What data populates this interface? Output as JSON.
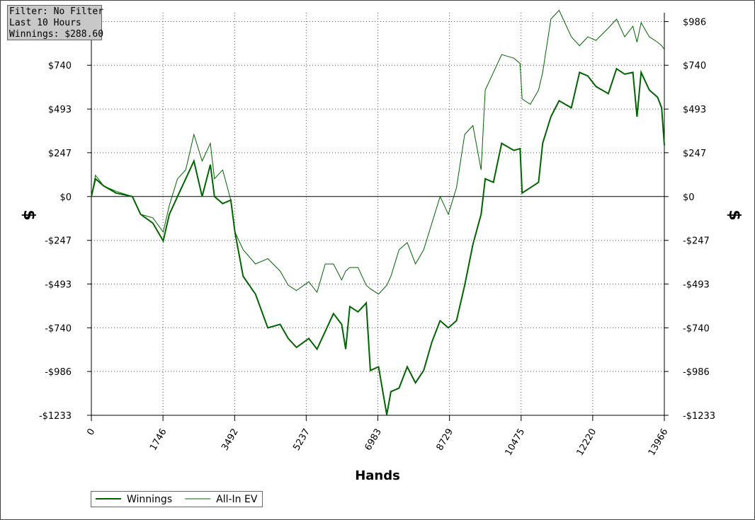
{
  "info": {
    "lines": [
      "Filter: No Filter",
      "Last 10 Hours",
      "Winnings: $288.60"
    ]
  },
  "chart_data": {
    "type": "line",
    "xlabel": "Hands",
    "ylabel": "$",
    "x": [
      0,
      100,
      300,
      600,
      1000,
      1200,
      1500,
      1750,
      1900,
      2100,
      2300,
      2500,
      2700,
      2900,
      3000,
      3200,
      3400,
      3500,
      3700,
      4000,
      4300,
      4600,
      4800,
      5000,
      5300,
      5500,
      5700,
      5900,
      6100,
      6200,
      6300,
      6500,
      6700,
      6800,
      7000,
      7200,
      7300,
      7500,
      7700,
      7900,
      8100,
      8300,
      8500,
      8700,
      8900,
      9100,
      9300,
      9500,
      9600,
      9800,
      10000,
      10300,
      10450,
      10500,
      10700,
      10900,
      11000,
      11200,
      11400,
      11700,
      11900,
      12100,
      12300,
      12600,
      12800,
      13000,
      13200,
      13300,
      13400,
      13600,
      13800,
      13900,
      13966
    ],
    "series": [
      {
        "name": "Winnings",
        "color": "#006400",
        "width": 2,
        "values": [
          0,
          100,
          60,
          20,
          0,
          -100,
          -150,
          -250,
          -100,
          0,
          100,
          200,
          0,
          180,
          0,
          -40,
          -20,
          -200,
          -450,
          -550,
          -740,
          -720,
          -800,
          -850,
          -800,
          -860,
          -760,
          -660,
          -720,
          -860,
          -620,
          -650,
          -600,
          -980,
          -960,
          -1230,
          -1100,
          -1080,
          -960,
          -1050,
          -980,
          -820,
          -700,
          -740,
          -700,
          -500,
          -270,
          -100,
          100,
          80,
          300,
          260,
          270,
          20,
          50,
          80,
          300,
          450,
          540,
          500,
          700,
          680,
          620,
          580,
          720,
          690,
          700,
          450,
          700,
          600,
          560,
          500,
          289
        ]
      },
      {
        "name": "All-In EV",
        "color": "#006400",
        "width": 1,
        "values": [
          0,
          120,
          60,
          30,
          0,
          -100,
          -120,
          -200,
          -50,
          100,
          150,
          350,
          200,
          300,
          100,
          150,
          -20,
          -200,
          -300,
          -380,
          -350,
          -420,
          -500,
          -530,
          -480,
          -540,
          -380,
          -380,
          -470,
          -420,
          -400,
          -400,
          -500,
          -520,
          -550,
          -500,
          -450,
          -300,
          -260,
          -380,
          -300,
          -150,
          0,
          -100,
          50,
          350,
          400,
          150,
          600,
          700,
          800,
          780,
          750,
          550,
          520,
          600,
          700,
          1000,
          1050,
          900,
          850,
          900,
          880,
          950,
          1000,
          900,
          960,
          870,
          980,
          900,
          870,
          850,
          830
        ]
      }
    ],
    "xlim": [
      0,
      13966
    ],
    "xticks": [
      0,
      1746,
      3492,
      5237,
      6983,
      8729,
      10475,
      12220,
      13966
    ],
    "ylim": [
      -1233,
      1036
    ],
    "yticks": [
      {
        "value": -1233,
        "label": "-$1233"
      },
      {
        "value": -986,
        "label": "-$986"
      },
      {
        "value": -740,
        "label": "-$740"
      },
      {
        "value": -493,
        "label": "-$493"
      },
      {
        "value": -247,
        "label": "-$247"
      },
      {
        "value": 0,
        "label": "$0"
      },
      {
        "value": 247,
        "label": "$247"
      },
      {
        "value": 493,
        "label": "$493"
      },
      {
        "value": 740,
        "label": "$740"
      },
      {
        "value": 986,
        "label": "$986"
      }
    ],
    "grid": true,
    "legend": "bottom-left"
  }
}
